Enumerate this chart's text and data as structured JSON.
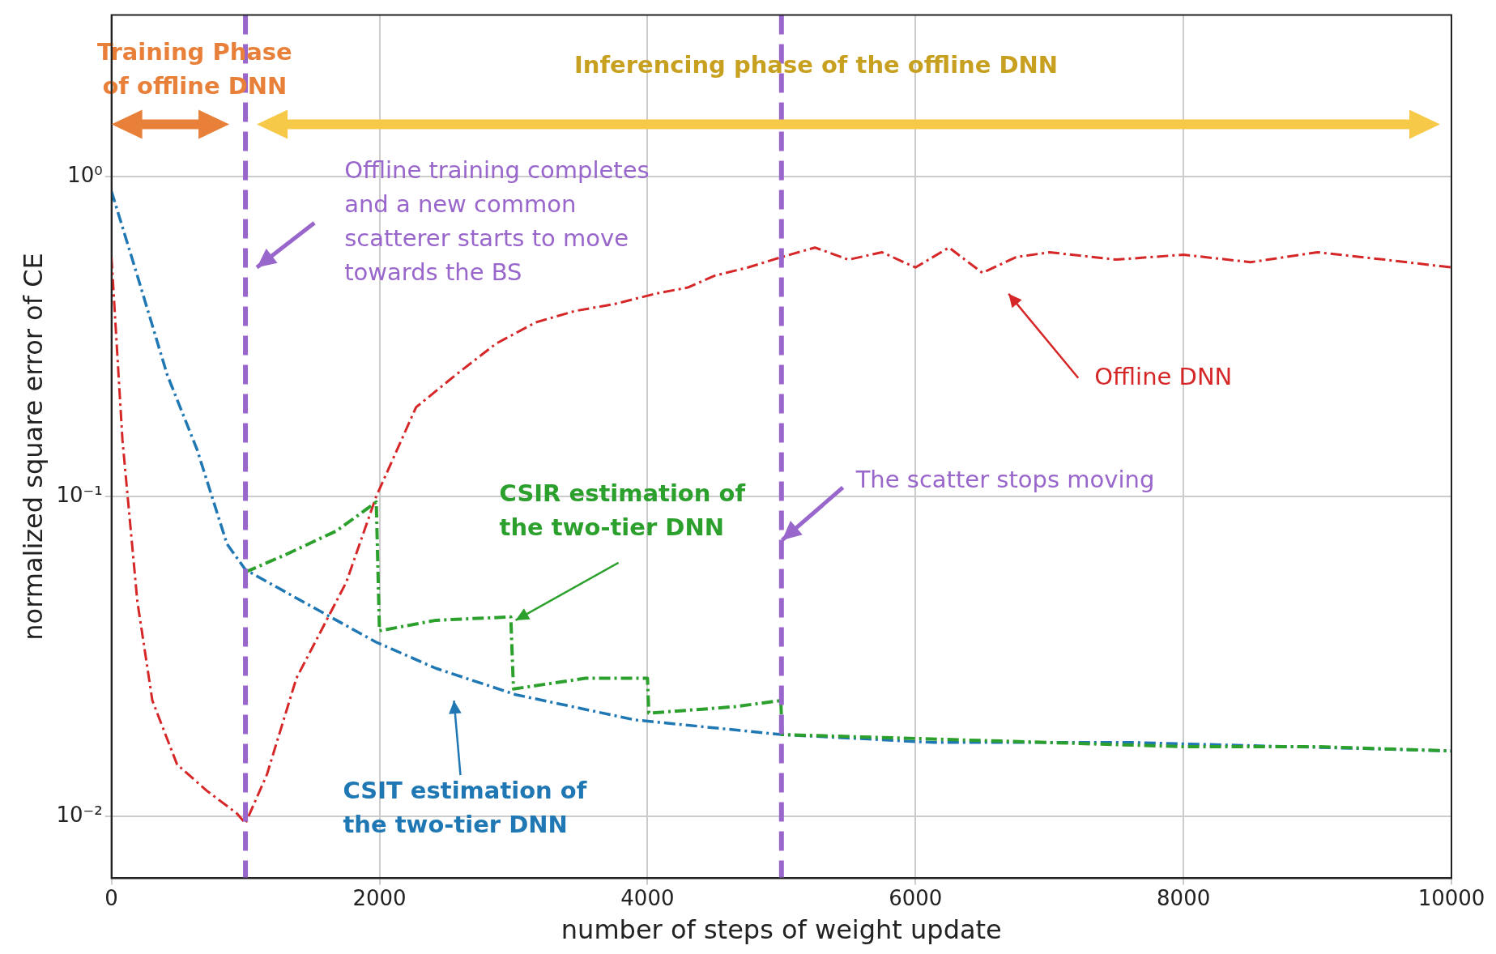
{
  "chart_data": {
    "type": "line",
    "xlabel": "number of steps of weight update",
    "ylabel": "normalized square error of CE",
    "xlim": [
      0,
      10000
    ],
    "xticks": [
      0,
      2000,
      4000,
      6000,
      8000,
      10000
    ],
    "ylim": [
      0.0064,
      3.2
    ],
    "yticks": [
      {
        "value": 1,
        "label": "10⁰"
      },
      {
        "value": 0.1,
        "label": "10⁻¹"
      },
      {
        "value": 0.01,
        "label": "10⁻²"
      }
    ],
    "log": "y",
    "grid": true,
    "legend": false,
    "marker": "none",
    "line_style": "dashed",
    "series": [
      {
        "color": "#d62728",
        "x": [
          0,
          82,
          193,
          305,
          490,
          713,
          936,
          1000,
          1160,
          1380,
          1605,
          1753,
          1976,
          2273,
          2570,
          2868,
          3165,
          3459,
          3759,
          4056,
          4300,
          4502,
          4750,
          5000,
          5250,
          5500,
          5750,
          6000,
          6250,
          6500,
          6750,
          7000,
          7500,
          8000,
          8500,
          9000,
          9500,
          10000
        ],
        "values": [
          0.56,
          0.15,
          0.047,
          0.023,
          0.0145,
          0.012,
          0.0102,
          0.0095,
          0.0135,
          0.027,
          0.041,
          0.054,
          0.1,
          0.19,
          0.24,
          0.3,
          0.35,
          0.38,
          0.4,
          0.43,
          0.45,
          0.49,
          0.52,
          0.56,
          0.6,
          0.55,
          0.58,
          0.52,
          0.6,
          0.5,
          0.56,
          0.58,
          0.55,
          0.57,
          0.54,
          0.58,
          0.55,
          0.52
        ]
      },
      {
        "color": "#1f77b4",
        "x": [
          0,
          193,
          416,
          639,
          862,
          1000,
          1308,
          1679,
          1976,
          2422,
          3016,
          3908,
          5000,
          6137,
          7623,
          10000
        ],
        "values": [
          0.9,
          0.49,
          0.24,
          0.14,
          0.071,
          0.059,
          0.05,
          0.041,
          0.035,
          0.029,
          0.024,
          0.02,
          0.018,
          0.017,
          0.017,
          0.016
        ]
      },
      {
        "color": "#2ca02c",
        "x": [
          1000,
          1308,
          1679,
          1976,
          2000,
          2422,
          2980,
          3000,
          3536,
          4000,
          4010,
          4650,
          4995,
          5005,
          6000,
          7000,
          8000,
          9000,
          10000
        ],
        "values": [
          0.058,
          0.066,
          0.078,
          0.096,
          0.038,
          0.041,
          0.042,
          0.025,
          0.027,
          0.027,
          0.021,
          0.022,
          0.023,
          0.018,
          0.0175,
          0.017,
          0.0165,
          0.0165,
          0.016
        ]
      }
    ],
    "ref_lines": [
      {
        "axis": "x",
        "value": 1000,
        "color": "#9966cc",
        "line_style": "dashed"
      },
      {
        "axis": "x",
        "value": 5000,
        "color": "#9966cc",
        "line_style": "dashed"
      }
    ],
    "annotations": [
      "Training Phase\nof offline DNN",
      "Inferencing phase of the offline DNN",
      "Offline training completes\nand a new common\nscatterer starts to move\ntowards the BS",
      {
        "text": "The scatter stops moving",
        "x": 5005,
        "y": 0.073
      },
      "Offline DNN",
      {
        "text": "CSIR estimation of\nthe two-tier DNN",
        "x": 3016,
        "y": 0.041
      },
      "CSIT estimation of\nthe two-tier DNN"
    ]
  }
}
